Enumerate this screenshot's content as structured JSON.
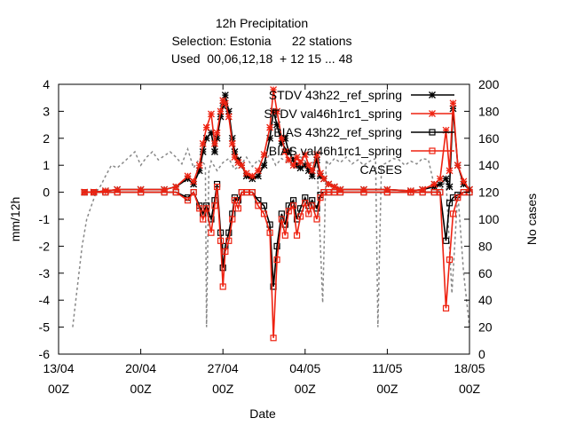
{
  "chart_data": {
    "type": "line",
    "title_lines": [
      "12h Precipitation",
      "Selection: Estonia      22 stations",
      "Used  00,06,12,18  + 12 15 ... 48"
    ],
    "xlabel": "Date",
    "ylabel_left": "mm/12h",
    "ylabel_right": "No cases",
    "ylim_left": [
      -6,
      4
    ],
    "ylim_right": [
      0,
      200
    ],
    "xlim_days": [
      0,
      35
    ],
    "x_ticks": [
      {
        "day": 0,
        "line1": "13/04",
        "line2": "00Z"
      },
      {
        "day": 7,
        "line1": "20/04",
        "line2": "00Z"
      },
      {
        "day": 14,
        "line1": "27/04",
        "line2": "00Z"
      },
      {
        "day": 21,
        "line1": "04/05",
        "line2": "00Z"
      },
      {
        "day": 28,
        "line1": "11/05",
        "line2": "00Z"
      },
      {
        "day": 35,
        "line1": "18/05",
        "line2": "00Z"
      }
    ],
    "y_ticks_left": [
      4,
      3,
      2,
      1,
      0,
      -1,
      -2,
      -3,
      -4,
      -5,
      -6
    ],
    "y_ticks_right": [
      200,
      180,
      160,
      140,
      120,
      100,
      80,
      60,
      40,
      20,
      0
    ],
    "legend_position": "top-right",
    "grid": false,
    "series": [
      {
        "name": "STDV 43h22_ref_spring",
        "color": "#000000",
        "marker": "star",
        "axis": "left",
        "x": [
          2.2,
          3.0,
          4.0,
          5.0,
          7.0,
          9.0,
          10.0,
          11.0,
          11.5,
          12.0,
          12.3,
          12.6,
          13.0,
          13.3,
          13.5,
          13.8,
          14.0,
          14.2,
          14.5,
          14.8,
          15.0,
          15.3,
          15.6,
          16.0,
          16.5,
          17.0,
          17.5,
          18.0,
          18.3,
          18.6,
          19.0,
          19.3,
          19.6,
          20.0,
          20.3,
          20.6,
          21.0,
          21.3,
          21.6,
          22.0,
          22.3,
          22.6,
          23.0,
          23.5,
          24.0,
          26.0,
          28.0,
          30.0,
          31.0,
          32.0,
          32.5,
          33.0,
          33.3,
          33.6,
          34.0,
          34.5,
          35.0
        ],
        "y": [
          0,
          0,
          0.05,
          0.1,
          0.1,
          0.1,
          0.2,
          0.5,
          0.3,
          0.8,
          1.5,
          2.0,
          2.2,
          1.5,
          2.0,
          2.8,
          3.2,
          3.6,
          3.0,
          2.0,
          1.5,
          1.2,
          1.0,
          0.6,
          0.5,
          0.6,
          1.0,
          2.0,
          3.0,
          2.5,
          1.8,
          2.0,
          1.5,
          1.2,
          1.0,
          0.9,
          1.0,
          0.8,
          0.6,
          1.2,
          0.6,
          0.5,
          0.3,
          0.2,
          0.1,
          0.1,
          0.1,
          0.05,
          0.1,
          0.2,
          0.3,
          0.5,
          0.2,
          3.1,
          1.0,
          0.3,
          0.1
        ]
      },
      {
        "name": "STDV val46h1rc1_spring",
        "color": "#ee2211",
        "marker": "star",
        "axis": "left",
        "x": [
          2.2,
          3.0,
          4.0,
          5.0,
          7.0,
          9.0,
          10.0,
          11.0,
          11.5,
          12.0,
          12.3,
          12.6,
          13.0,
          13.3,
          13.5,
          13.8,
          14.0,
          14.2,
          14.5,
          14.8,
          15.0,
          15.3,
          15.6,
          16.0,
          16.5,
          17.0,
          17.5,
          18.0,
          18.3,
          18.6,
          19.0,
          19.3,
          19.6,
          20.0,
          20.3,
          20.6,
          21.0,
          21.3,
          21.6,
          22.0,
          22.3,
          22.6,
          23.0,
          23.5,
          24.0,
          26.0,
          28.0,
          30.0,
          31.0,
          32.0,
          32.5,
          33.0,
          33.3,
          33.6,
          34.0,
          34.5,
          35.0
        ],
        "y": [
          0,
          0,
          0.05,
          0.1,
          0.1,
          0.1,
          0.2,
          0.6,
          0.4,
          1.0,
          1.8,
          2.4,
          2.9,
          1.8,
          2.2,
          3.0,
          3.4,
          3.3,
          2.8,
          1.8,
          1.3,
          1.1,
          1.0,
          0.7,
          0.6,
          0.8,
          1.4,
          2.4,
          3.8,
          3.0,
          2.0,
          1.5,
          1.2,
          1.0,
          1.3,
          1.1,
          1.4,
          1.0,
          0.8,
          1.4,
          0.7,
          0.5,
          0.3,
          0.2,
          0.1,
          0.1,
          0.1,
          0.05,
          0.1,
          0.3,
          0.5,
          2.3,
          0.8,
          3.3,
          1.0,
          0.4,
          0.1
        ]
      },
      {
        "name": "BIAS 43h22_ref_spring",
        "color": "#000000",
        "marker": "square",
        "axis": "left",
        "x": [
          2.2,
          3.0,
          4.0,
          5.0,
          7.0,
          9.0,
          10.0,
          11.0,
          11.5,
          12.0,
          12.3,
          12.6,
          13.0,
          13.3,
          13.5,
          13.8,
          14.0,
          14.2,
          14.5,
          14.8,
          15.0,
          15.3,
          15.6,
          16.0,
          16.5,
          17.0,
          17.5,
          18.0,
          18.3,
          18.6,
          19.0,
          19.3,
          19.6,
          20.0,
          20.3,
          20.6,
          21.0,
          21.3,
          21.6,
          22.0,
          22.3,
          22.6,
          23.0,
          23.5,
          24.0,
          26.0,
          28.0,
          30.0,
          31.0,
          32.0,
          32.5,
          33.0,
          33.3,
          33.6,
          34.0,
          34.5,
          35.0
        ],
        "y": [
          0,
          0,
          0,
          0,
          0,
          0,
          0,
          -0.2,
          0,
          -0.5,
          -0.8,
          -0.5,
          -1.0,
          -0.3,
          0.3,
          -1.5,
          -2.8,
          -2.0,
          -1.5,
          -0.8,
          -0.2,
          -0.3,
          0,
          0,
          0,
          -0.3,
          -0.5,
          -1.2,
          -3.5,
          -2.0,
          -0.8,
          -1.2,
          -0.5,
          -0.3,
          -1.0,
          -0.6,
          -0.2,
          -0.5,
          -0.3,
          -0.6,
          -0.1,
          0,
          0,
          0,
          0,
          0,
          0,
          0,
          0,
          0,
          0,
          -1.8,
          -0.4,
          -0.2,
          -0.1,
          0,
          0
        ]
      },
      {
        "name": "BIAS val46h1rc1_spring",
        "color": "#ee2211",
        "marker": "square",
        "axis": "left",
        "x": [
          2.2,
          3.0,
          4.0,
          5.0,
          7.0,
          9.0,
          10.0,
          11.0,
          11.5,
          12.0,
          12.3,
          12.6,
          13.0,
          13.3,
          13.5,
          13.8,
          14.0,
          14.2,
          14.5,
          14.8,
          15.0,
          15.3,
          15.6,
          16.0,
          16.5,
          17.0,
          17.5,
          18.0,
          18.3,
          18.6,
          19.0,
          19.3,
          19.6,
          20.0,
          20.3,
          20.6,
          21.0,
          21.3,
          21.6,
          22.0,
          22.3,
          22.6,
          23.0,
          23.5,
          24.0,
          26.0,
          28.0,
          30.0,
          31.0,
          32.0,
          32.5,
          33.0,
          33.3,
          33.6,
          34.0,
          34.5,
          35.0
        ],
        "y": [
          0,
          0,
          0,
          0,
          0,
          0,
          0,
          -0.3,
          0,
          -0.6,
          -1.0,
          -0.6,
          -1.5,
          -0.5,
          0.2,
          -1.8,
          -3.5,
          -2.2,
          -1.8,
          -1.0,
          -0.3,
          -0.6,
          0,
          0,
          0,
          -0.5,
          -0.8,
          -1.5,
          -5.4,
          -2.5,
          -1.0,
          -1.6,
          -0.7,
          -0.5,
          -1.6,
          -0.9,
          -0.4,
          -0.8,
          -0.5,
          -1.0,
          -0.2,
          0,
          0,
          0,
          0,
          0,
          0,
          0,
          0,
          0,
          0,
          -4.3,
          -2.5,
          -0.8,
          -0.2,
          0,
          0
        ]
      },
      {
        "name": "CASES",
        "color": "#888888",
        "marker": "none",
        "dash": true,
        "axis": "right",
        "x": [
          1.2,
          1.6,
          2.0,
          2.4,
          2.8,
          3.2,
          3.6,
          4.0,
          4.5,
          5.0,
          5.5,
          6.0,
          6.5,
          7.0,
          7.5,
          8.0,
          8.5,
          9.0,
          9.5,
          10.0,
          10.5,
          11.0,
          11.5,
          12.0,
          12.5,
          12.6,
          12.8,
          13.0,
          13.5,
          14.0,
          14.5,
          15.0,
          15.5,
          16.0,
          16.5,
          17.0,
          17.5,
          18.0,
          18.5,
          19.0,
          19.5,
          20.0,
          20.5,
          21.0,
          21.5,
          22.0,
          22.5,
          22.8,
          23.0,
          23.5,
          24.0,
          24.5,
          25.0,
          25.5,
          26.0,
          26.5,
          27.0,
          27.2,
          27.5,
          28.0,
          28.5,
          29.0,
          29.5,
          30.0,
          30.5,
          31.0,
          31.5,
          32.0,
          32.5,
          33.0,
          33.5,
          34.0,
          34.5,
          35.0
        ],
        "y": [
          20,
          50,
          80,
          100,
          110,
          120,
          125,
          132,
          140,
          138,
          142,
          146,
          150,
          140,
          146,
          150,
          144,
          147,
          150,
          146,
          141,
          152,
          138,
          145,
          140,
          20,
          135,
          143,
          136,
          142,
          145,
          137,
          140,
          146,
          139,
          144,
          140,
          149,
          140,
          145,
          142,
          140,
          147,
          143,
          140,
          146,
          38,
          144,
          140,
          145,
          142,
          146,
          141,
          144,
          140,
          143,
          145,
          20,
          140,
          142,
          145,
          144,
          140,
          143,
          141,
          145,
          144,
          125,
          120,
          130,
          45,
          120,
          60,
          20
        ]
      }
    ]
  }
}
